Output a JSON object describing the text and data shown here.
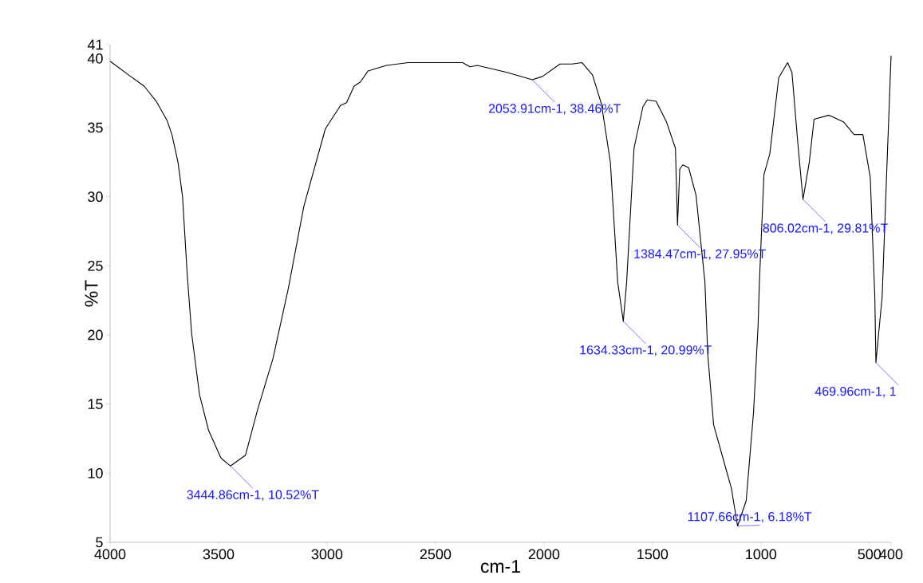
{
  "chart_data": {
    "type": "line",
    "xlabel": "cm-1",
    "ylabel": "%T",
    "color": "#000000",
    "x": [
      4000,
      3914,
      3843,
      3787,
      3737,
      3715,
      3687,
      3666,
      3645,
      3624,
      3588,
      3546,
      3489,
      3444.86,
      3376,
      3320,
      3249,
      3178,
      3107,
      3008,
      2938,
      2910,
      2875,
      2846,
      2811,
      2726,
      2627,
      2375,
      2341,
      2307,
      2171,
      2053.91,
      2007,
      1926,
      1871,
      1824,
      1776,
      1735,
      1694,
      1660,
      1634.33,
      1619,
      1585,
      1544,
      1524,
      1483,
      1435,
      1394,
      1384.47,
      1374,
      1360,
      1333,
      1299,
      1258,
      1245,
      1218,
      1177,
      1136,
      1107.66,
      1068,
      1034,
      1013,
      1007,
      986,
      959,
      918,
      877,
      857,
      830,
      806.02,
      777,
      755,
      686,
      618,
      571,
      530,
      496,
      475,
      469.96,
      441,
      421,
      400
    ],
    "values": [
      39.8,
      38.8,
      38.0,
      36.9,
      35.5,
      34.5,
      32.5,
      30.0,
      24.5,
      20.1,
      15.7,
      13.1,
      11.1,
      10.52,
      11.3,
      14.6,
      18.3,
      23.4,
      29.3,
      34.9,
      36.6,
      36.8,
      38.0,
      38.3,
      39.1,
      39.5,
      39.7,
      39.7,
      39.4,
      39.5,
      39.0,
      38.46,
      38.7,
      39.6,
      39.6,
      39.7,
      38.8,
      36.7,
      32.5,
      23.8,
      20.99,
      23.8,
      33.5,
      36.5,
      37.0,
      36.9,
      35.4,
      33.5,
      27.95,
      32.0,
      32.3,
      32.1,
      30.1,
      23.8,
      18.6,
      13.5,
      11.2,
      8.9,
      6.18,
      8.0,
      14.4,
      20.7,
      23.8,
      31.6,
      33.1,
      38.6,
      39.7,
      39.0,
      33.9,
      29.81,
      32.5,
      35.6,
      35.9,
      35.4,
      34.5,
      34.5,
      31.4,
      22.8,
      18.0,
      22.8,
      31.4,
      40.2
    ],
    "xlim": [
      4000,
      400
    ],
    "ylim": [
      5,
      41
    ],
    "xticks": [
      4000,
      3500,
      3000,
      2500,
      2000,
      1500,
      1000,
      500,
      400
    ],
    "yticks": [
      5,
      10,
      15,
      20,
      25,
      30,
      35,
      40,
      41
    ],
    "annotations": [
      {
        "text": "3444.86cm-1, 10.52%T",
        "x": 3444.86,
        "y": 10.52
      },
      {
        "text": "2053.91cm-1, 38.46%T",
        "x": 2053.91,
        "y": 38.46
      },
      {
        "text": "1634.33cm-1, 20.99%T",
        "x": 1634.33,
        "y": 20.99
      },
      {
        "text": "1384.47cm-1, 27.95%T",
        "x": 1384.47,
        "y": 27.95
      },
      {
        "text": "1107.66cm-1, 6.18%T",
        "x": 1107.66,
        "y": 6.18
      },
      {
        "text": "806.02cm-1, 29.81%T",
        "x": 806.02,
        "y": 29.81
      },
      {
        "text": "469.96cm-1, 1",
        "x": 469.96,
        "y": 18.0
      }
    ]
  }
}
